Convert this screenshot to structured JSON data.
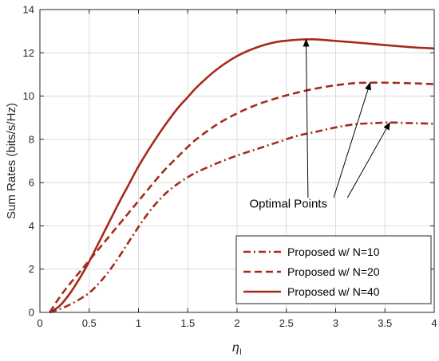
{
  "chart_data": {
    "type": "line",
    "title": "",
    "xlabel_symbol": "η",
    "xlabel_subscript": "I",
    "ylabel": "Sum Rates (bits/s/Hz)",
    "xlim": [
      0,
      4
    ],
    "ylim": [
      0,
      14
    ],
    "xticks": [
      0,
      0.5,
      1,
      1.5,
      2,
      2.5,
      3,
      3.5,
      4
    ],
    "yticks": [
      0,
      2,
      4,
      6,
      8,
      10,
      12,
      14
    ],
    "grid": true,
    "legend_position": "bottom-right",
    "series": [
      {
        "name": "Proposed w/ N=10",
        "style": "dashdot",
        "color": "#a52a1a",
        "x": [
          0.1,
          0.2,
          0.3,
          0.4,
          0.5,
          0.6,
          0.7,
          0.8,
          0.9,
          1.0,
          1.1,
          1.2,
          1.3,
          1.4,
          1.5,
          1.6,
          1.8,
          2.0,
          2.2,
          2.4,
          2.6,
          2.8,
          3.0,
          3.2,
          3.4,
          3.55,
          3.7,
          3.85,
          4.0
        ],
        "y": [
          0.0,
          0.15,
          0.35,
          0.6,
          0.9,
          1.35,
          1.9,
          2.55,
          3.25,
          3.95,
          4.6,
          5.15,
          5.6,
          5.95,
          6.25,
          6.5,
          6.9,
          7.25,
          7.55,
          7.85,
          8.15,
          8.35,
          8.55,
          8.7,
          8.75,
          8.78,
          8.76,
          8.74,
          8.72
        ]
      },
      {
        "name": "Proposed w/ N=20",
        "style": "dashed",
        "color": "#a52a1a",
        "x": [
          0.1,
          0.2,
          0.3,
          0.4,
          0.5,
          0.6,
          0.7,
          0.8,
          0.9,
          1.0,
          1.1,
          1.2,
          1.3,
          1.4,
          1.5,
          1.6,
          1.8,
          2.0,
          2.2,
          2.4,
          2.6,
          2.8,
          3.0,
          3.2,
          3.35,
          3.5,
          3.7,
          3.85,
          4.0
        ],
        "y": [
          0.0,
          0.7,
          1.3,
          1.85,
          2.4,
          2.95,
          3.5,
          4.05,
          4.6,
          5.15,
          5.7,
          6.25,
          6.75,
          7.2,
          7.65,
          8.05,
          8.7,
          9.2,
          9.6,
          9.9,
          10.15,
          10.35,
          10.5,
          10.6,
          10.62,
          10.62,
          10.6,
          10.58,
          10.55
        ]
      },
      {
        "name": "Proposed w/ N=40",
        "style": "solid",
        "color": "#a52a1a",
        "x": [
          0.1,
          0.2,
          0.3,
          0.4,
          0.5,
          0.6,
          0.7,
          0.8,
          0.9,
          1.0,
          1.1,
          1.2,
          1.3,
          1.4,
          1.5,
          1.6,
          1.8,
          2.0,
          2.2,
          2.4,
          2.6,
          2.7,
          2.8,
          3.0,
          3.2,
          3.4,
          3.6,
          3.8,
          4.0
        ],
        "y": [
          0.0,
          0.3,
          0.85,
          1.55,
          2.35,
          3.25,
          4.15,
          5.05,
          5.9,
          6.75,
          7.5,
          8.2,
          8.85,
          9.45,
          9.95,
          10.45,
          11.25,
          11.85,
          12.25,
          12.5,
          12.6,
          12.62,
          12.62,
          12.55,
          12.48,
          12.4,
          12.32,
          12.25,
          12.2
        ]
      }
    ],
    "annotations": [
      {
        "text": "Optimal Points",
        "text_anchor": [
          2.52,
          4.85
        ],
        "arrows": [
          {
            "from": [
              2.72,
              5.3
            ],
            "to": [
              2.7,
              12.62
            ]
          },
          {
            "from": [
              2.98,
              5.3
            ],
            "to": [
              3.35,
              10.62
            ]
          },
          {
            "from": [
              3.12,
              5.3
            ],
            "to": [
              3.55,
              8.78
            ]
          }
        ]
      }
    ]
  }
}
